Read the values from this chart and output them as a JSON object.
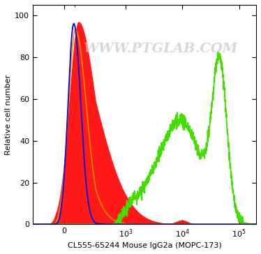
{
  "title": "",
  "xlabel": "CL555-65244 Mouse IgG2a (MOPC-173)",
  "ylabel": "Relative cell number",
  "watermark": "WWW.PTGLAB.COM",
  "ylim": [
    0,
    105
  ],
  "xlim_left": -300,
  "xlim_right": 200000,
  "linthresh": 300,
  "linscale": 0.5,
  "background_color": "#ffffff",
  "plot_bg_color": "#ffffff",
  "watermark_color": "#c8c8c8",
  "watermark_fontsize": 14,
  "curves": {
    "red_fill": {
      "color": "#ff0000",
      "alpha_fill": 0.9,
      "linewidth": 0
    },
    "blue_line": {
      "color": "#1010cc",
      "linewidth": 1.4,
      "alpha": 1.0
    },
    "orange_line": {
      "color": "#ff8800",
      "linewidth": 1.2,
      "alpha": 1.0
    },
    "green_line": {
      "color": "#44dd00",
      "linewidth": 1.3,
      "alpha": 1.0
    }
  }
}
